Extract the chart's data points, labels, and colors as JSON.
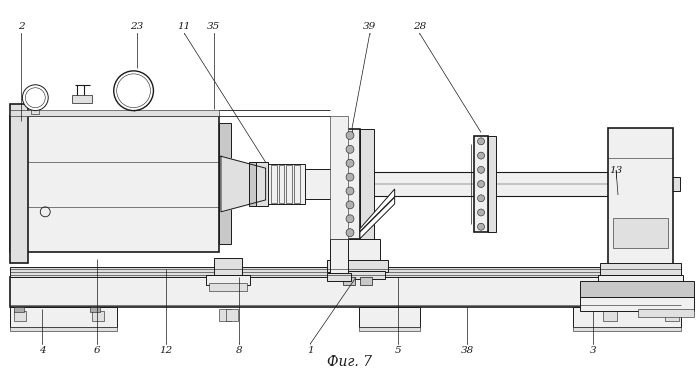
{
  "title": "Фиг. 7",
  "bg_color": "#ffffff",
  "line_color": "#1a1a1a",
  "fill_light": "#f0f0f0",
  "fill_mid": "#e0e0e0",
  "fill_dark": "#c8c8c8",
  "fill_gray": "#d8d8d8"
}
